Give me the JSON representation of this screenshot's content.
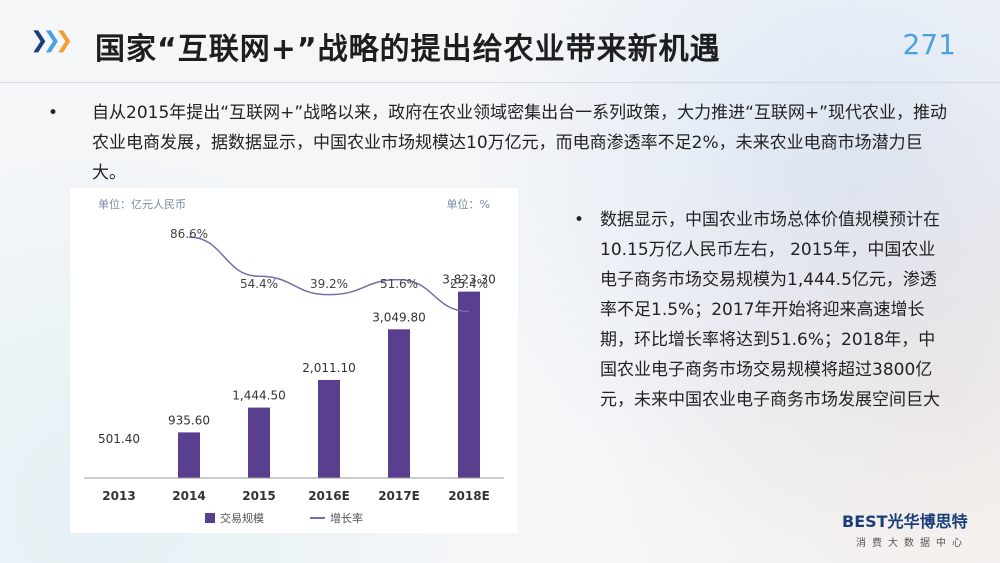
{
  "header": {
    "title": "国家“互联网+”战略的提出给农业带来新机遇",
    "page_number": "271"
  },
  "bullet_top": "自从2015年提出“互联网+”战略以来，政府在农业领域密集出台一系列政策，大力推进“互联网+”现代农业，推动农业电商发展，据数据显示，中国农业市场规模达10万亿元，而电商渗透率不足2%，未来农业电商市场潜力巨大。",
  "bullet_right": "数据显示，中国农业市场总体价值规模预计在10.15万亿人民币左右， 2015年，中国农业电子商务市场交易规模为1,444.5亿元，渗透率不足1.5%；2017年开始将迎来高速增长期，环比增长率将达到51.6%；2018年，中国农业电子商务市场交易规模将超过3800亿元，未来中国农业电子商务市场发展空间巨大",
  "bullet_marker": "•",
  "colors": {
    "bar": "#5b3f8f",
    "line": "#7b6aa8",
    "accent": "#4aa1e0",
    "arrow1": "#1a3e7a",
    "arrow2": "#4aa1e0",
    "arrow3": "#f0a030"
  },
  "chart_data": {
    "type": "bar",
    "unit_left": "单位：亿元人民币",
    "unit_right": "单位：%",
    "categories": [
      "2013",
      "2014",
      "2015",
      "2016E",
      "2017E",
      "2018E"
    ],
    "series": [
      {
        "name": "交易规模",
        "values": [
          501.4,
          935.6,
          1444.5,
          2011.1,
          3049.8,
          3823.3
        ],
        "labels": [
          "501.40",
          "935.60",
          "1,444.50",
          "2,011.10",
          "3,049.80",
          "3,823.30"
        ]
      },
      {
        "name": "增长率",
        "values": [
          null,
          86.6,
          54.4,
          39.2,
          51.6,
          25.4
        ],
        "labels": [
          "",
          "86.6%",
          "54.4%",
          "39.2%",
          "51.6%",
          "25.4%"
        ]
      }
    ],
    "legend_position": "bottom"
  },
  "logo": {
    "name": "BEST光华博思特",
    "sub": "消费大数据中心"
  }
}
